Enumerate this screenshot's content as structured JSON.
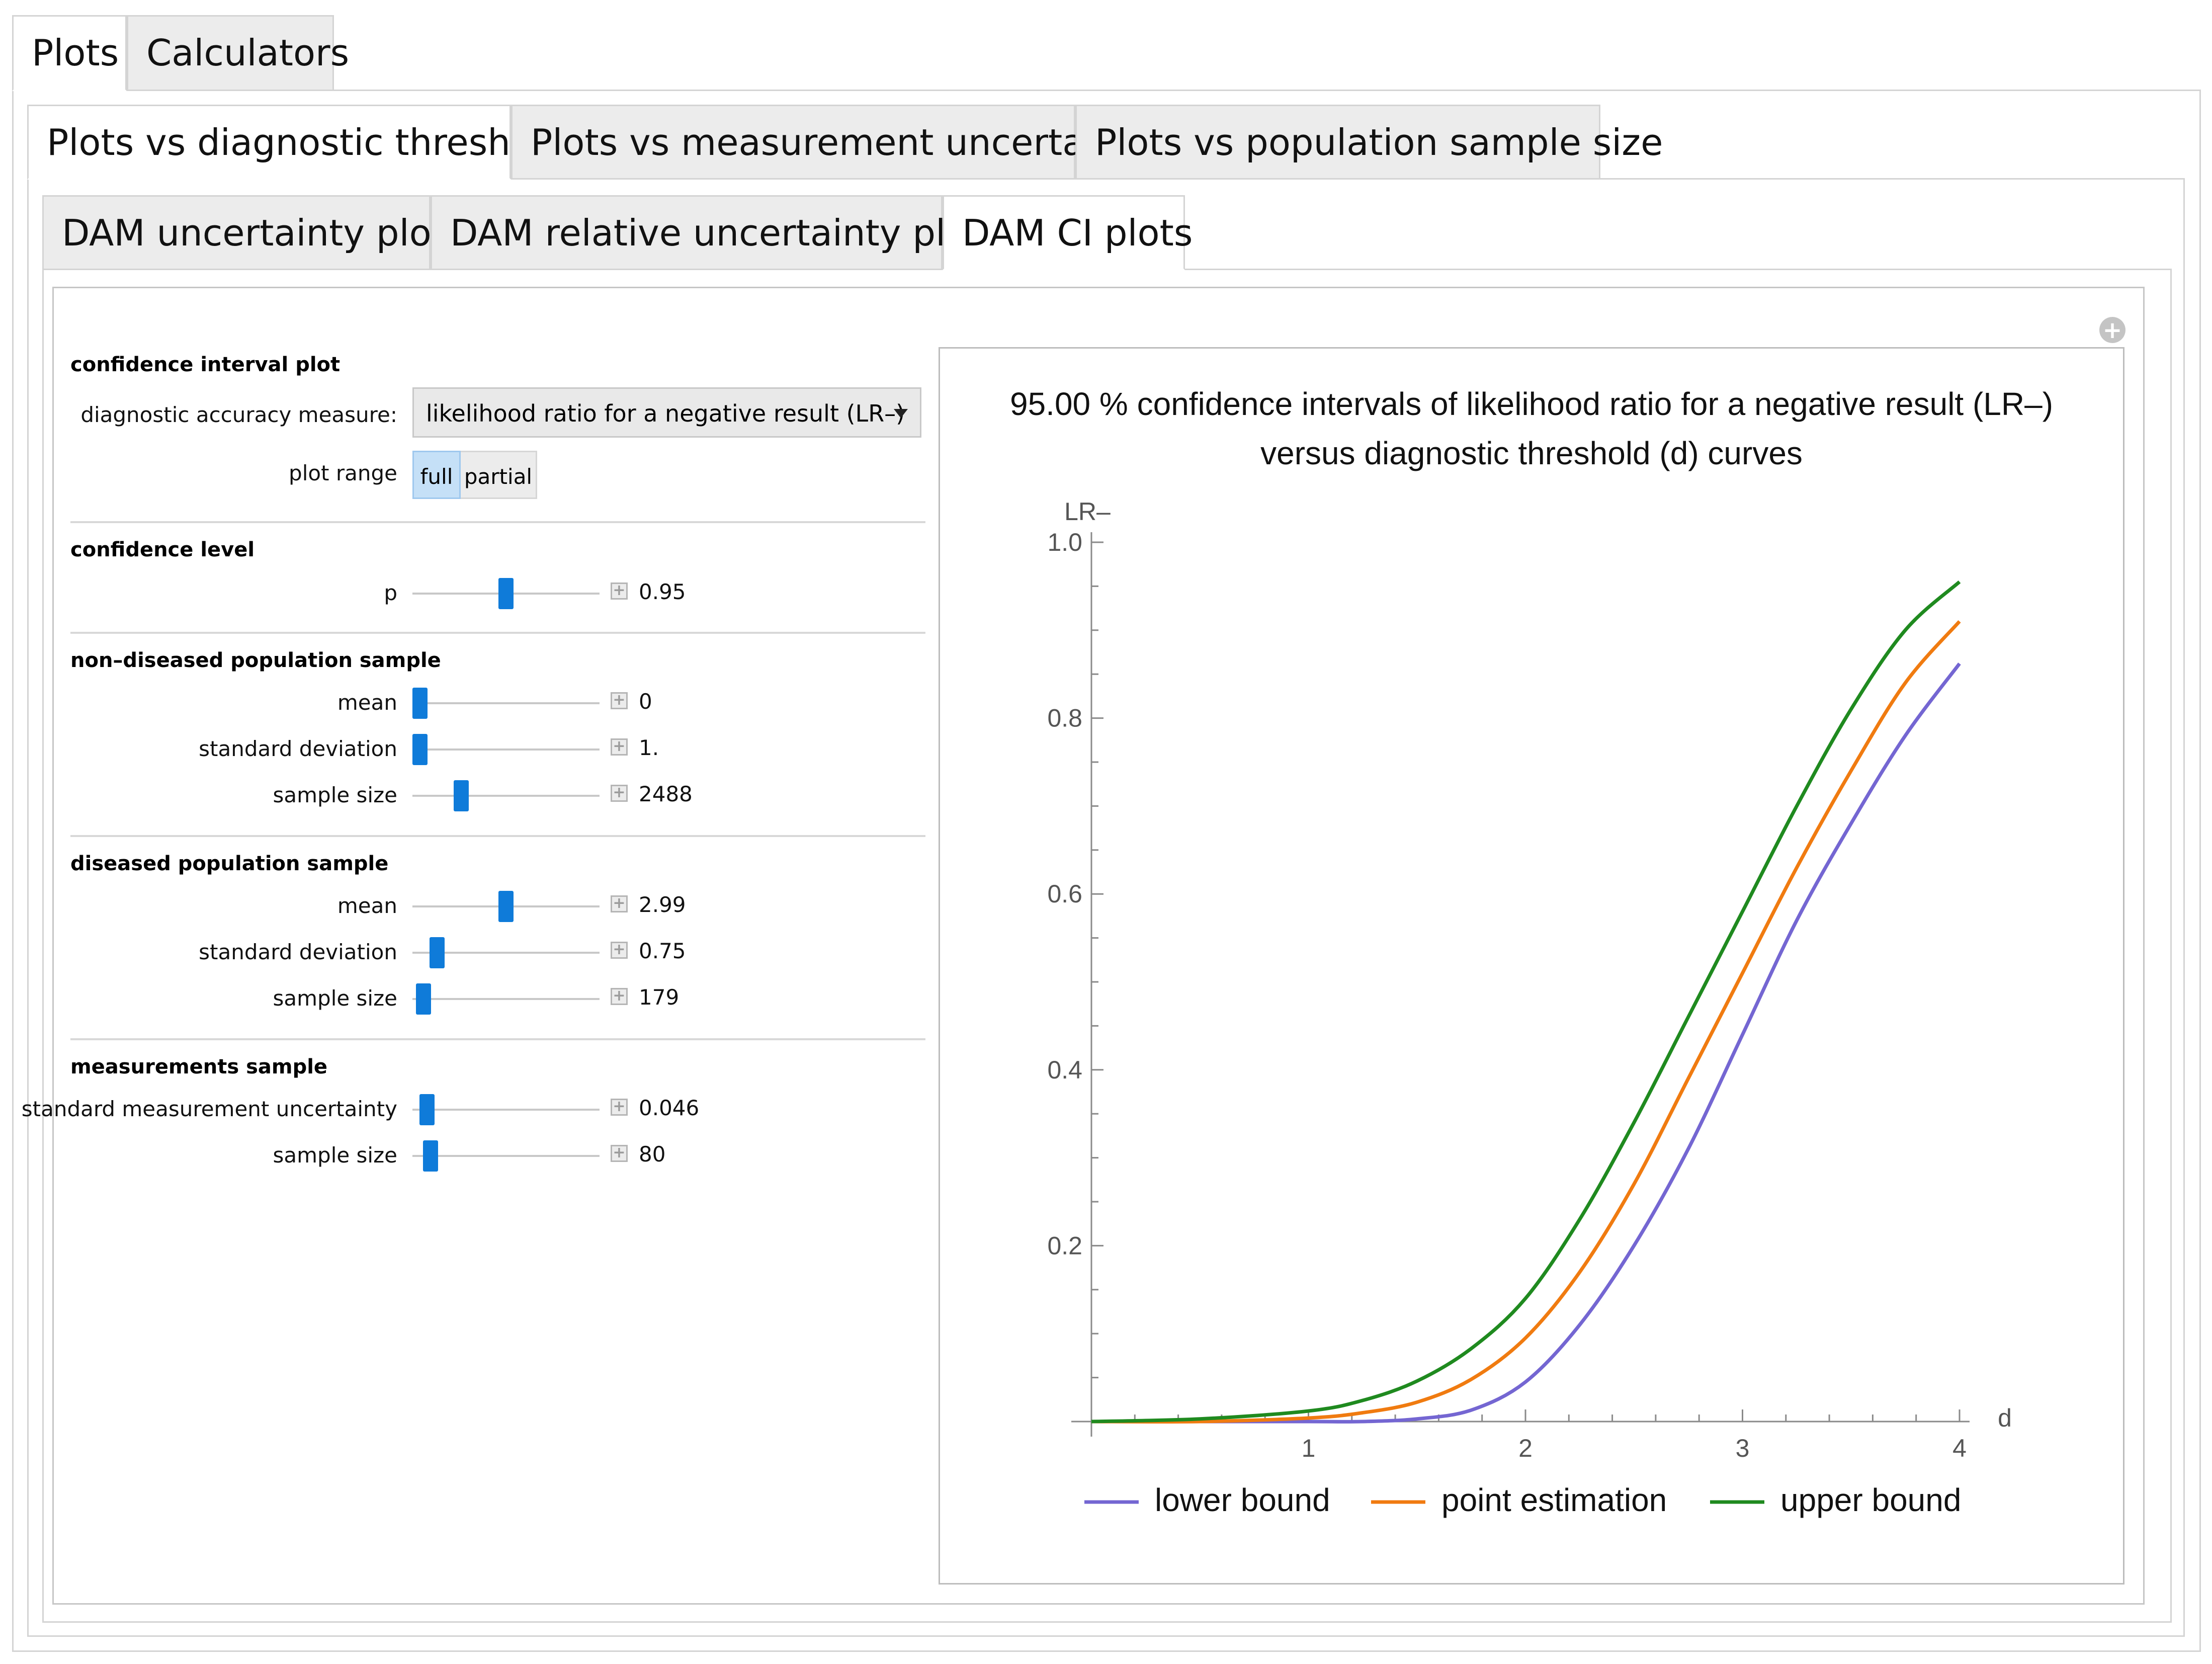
{
  "top_tabs": [
    "Plots",
    "Calculators"
  ],
  "sub_tabs": [
    "Plots vs diagnostic threshold",
    "Plots vs measurement uncertainty",
    "Plots vs population sample size"
  ],
  "plot_tabs": [
    "DAM uncertainty plots",
    "DAM relative uncertainty plots",
    "DAM CI plots"
  ],
  "panel": {
    "ci_plot": {
      "title": "confidence interval plot",
      "measure_label": "diagnostic accuracy measure:",
      "measure_value": "likelihood ratio for a negative result (LR–)",
      "range_label": "plot range",
      "range_full": "full",
      "range_partial": "partial",
      "range_selected": "full"
    },
    "confidence": {
      "title": "confidence level",
      "p_label": "p",
      "p_value": "0.95",
      "p_level": 0.5
    },
    "nondiseased": {
      "title": "non–diseased population sample",
      "mean_label": "mean",
      "mean_value": "0",
      "mean_level": 0.0,
      "sd_label": "standard deviation",
      "sd_value": "1.",
      "sd_level": 0.0,
      "n_label": "sample size",
      "n_value": "2488",
      "n_level": 0.24
    },
    "diseased": {
      "title": "diseased population sample",
      "mean_label": "mean",
      "mean_value": "2.99",
      "mean_level": 0.5,
      "sd_label": "standard deviation",
      "sd_value": "0.75",
      "sd_level": 0.1,
      "n_label": "sample size",
      "n_value": "179",
      "n_level": 0.02
    },
    "measurements": {
      "title": "measurements sample",
      "u_label": "standard measurement uncertainty",
      "u_value": "0.046",
      "u_level": 0.04,
      "n_label": "sample size",
      "n_value": "80",
      "n_level": 0.06
    }
  },
  "colors": {
    "lower": "#7466d2",
    "point": "#f07b10",
    "upper": "#1f8a1f",
    "accent": "#0f7bd9"
  },
  "chart_data": {
    "type": "line",
    "title_line1": "95.00 % confidence intervals of likelihood ratio for a negative result (LR–)",
    "title_line2": "versus diagnostic threshold (d) curves",
    "xlabel": "d",
    "ylabel": "LR–",
    "xlim": [
      0,
      4
    ],
    "ylim": [
      0,
      1.0
    ],
    "x_ticks": [
      "1",
      "2",
      "3",
      "4"
    ],
    "y_ticks": [
      "0.2",
      "0.4",
      "0.6",
      "0.8",
      "1.0"
    ],
    "legend_position": "bottom",
    "x": [
      0,
      0.5,
      1.0,
      1.25,
      1.5,
      1.75,
      2.0,
      2.25,
      2.5,
      2.75,
      3.0,
      3.25,
      3.5,
      3.75,
      4.0
    ],
    "series": [
      {
        "name": "lower bound",
        "values": [
          0.0,
          0.0,
          0.0,
          0.0,
          0.003,
          0.013,
          0.045,
          0.11,
          0.2,
          0.31,
          0.44,
          0.57,
          0.68,
          0.78,
          0.862
        ]
      },
      {
        "name": "point estimation",
        "values": [
          0.0,
          0.0,
          0.004,
          0.01,
          0.022,
          0.048,
          0.095,
          0.17,
          0.27,
          0.39,
          0.51,
          0.63,
          0.74,
          0.84,
          0.91
        ]
      },
      {
        "name": "upper bound",
        "values": [
          0.0,
          0.003,
          0.012,
          0.024,
          0.046,
          0.083,
          0.14,
          0.23,
          0.34,
          0.46,
          0.58,
          0.7,
          0.81,
          0.9,
          0.955
        ]
      }
    ]
  }
}
